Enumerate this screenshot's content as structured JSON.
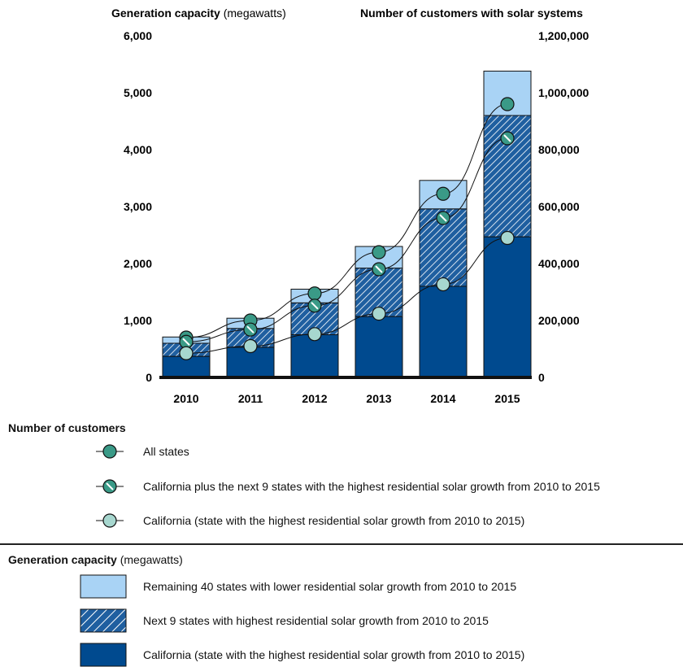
{
  "chart_data": {
    "type": "bar",
    "categories": [
      "2010",
      "2011",
      "2012",
      "2013",
      "2014",
      "2015"
    ],
    "left_axis": {
      "title_bold": "Generation capacity",
      "title_unit": "(megawatts)",
      "ylim": [
        0,
        6000
      ],
      "ticks": [
        "0",
        "1,000",
        "2,000",
        "3,000",
        "4,000",
        "5,000",
        "6,000"
      ]
    },
    "right_axis": {
      "title": "Number of customers with solar systems",
      "ylim": [
        0,
        1200000
      ],
      "ticks": [
        "0",
        "200,000",
        "400,000",
        "600,000",
        "800,000",
        "1,000,000",
        "1,200,000"
      ]
    },
    "stacked_bars": [
      {
        "name": "California (state with the highest residential solar growth from 2010 to 2015)",
        "values": [
          370,
          530,
          750,
          1070,
          1600,
          2470
        ],
        "color": "#004a8f"
      },
      {
        "name": "Next 9 states with highest residential solar growth from 2010 to 2015",
        "values": [
          230,
          330,
          560,
          850,
          1360,
          2130
        ],
        "color": "#1f5fa0",
        "pattern": "hatched"
      },
      {
        "name": "Remaining 40 states with lower residential solar growth from 2010 to 2015",
        "values": [
          110,
          180,
          240,
          380,
          500,
          780
        ],
        "color": "#a9d3f5"
      }
    ],
    "line_series": [
      {
        "name": "All states",
        "values": [
          140000,
          200000,
          295000,
          440000,
          645000,
          960000
        ],
        "color": "#3a9a87"
      },
      {
        "name": "California plus the next 9 states with the highest residential solar growth from 2010 to 2015",
        "values": [
          125000,
          168000,
          252000,
          380000,
          560000,
          840000
        ],
        "color": "#3a9a87",
        "marker": "slashed"
      },
      {
        "name": "California (state with the highest residential solar growth from 2010 to 2015)",
        "values": [
          85000,
          110000,
          152000,
          224000,
          327000,
          490000
        ],
        "color": "#a7d7cf"
      }
    ]
  },
  "legend": {
    "customers_title": "Number of customers",
    "customers_items": [
      "All states",
      "California plus the next 9 states with the highest residential solar growth from 2010 to 2015",
      "California (state with the highest residential solar growth from 2010 to 2015)"
    ],
    "capacity_title_bold": "Generation capacity",
    "capacity_title_unit": "(megawatts)",
    "capacity_items": [
      "Remaining 40 states with lower residential solar growth from 2010 to 2015",
      "Next 9 states with highest residential solar growth from 2010 to 2015",
      "California (state with the highest residential solar growth from 2010 to 2015)"
    ]
  }
}
